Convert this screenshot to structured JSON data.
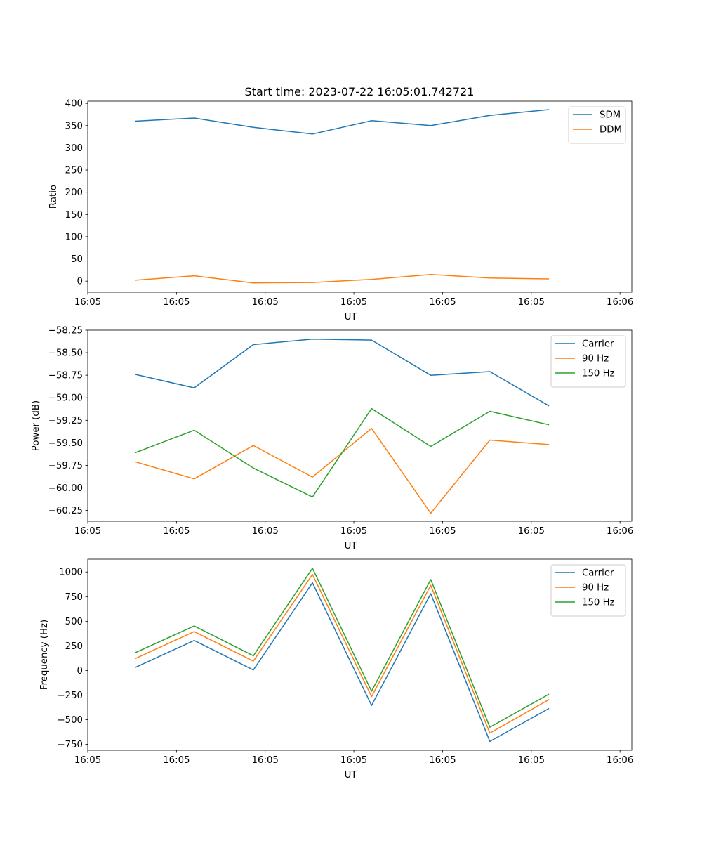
{
  "figure_title": "Start time: 2023-07-22 16:05:01.742721",
  "colors": {
    "blue": "#1f77b4",
    "orange": "#ff7f0e",
    "green": "#2ca02c"
  },
  "chart_data": [
    {
      "type": "line",
      "title": "Start time: 2023-07-22 16:05:01.742721",
      "xlabel": "UT",
      "ylabel": "Ratio",
      "x": [
        1,
        2,
        3,
        4,
        5,
        6,
        7,
        8
      ],
      "xlim": [
        0.2,
        9.4
      ],
      "xticks": [
        0.2,
        1.7,
        3.2,
        4.7,
        6.2,
        7.7,
        9.2
      ],
      "xtick_labels": [
        "16:05",
        "16:05",
        "16:05",
        "16:05",
        "16:05",
        "16:05",
        "16:06"
      ],
      "ylim": [
        -25,
        405
      ],
      "yticks": [
        0,
        50,
        100,
        150,
        200,
        250,
        300,
        350,
        400
      ],
      "ytick_labels": [
        "0",
        "50",
        "100",
        "150",
        "200",
        "250",
        "300",
        "350",
        "400"
      ],
      "legend_loc": "upper right",
      "series": [
        {
          "name": "SDM",
          "color": "#1f77b4",
          "values": [
            360,
            367,
            346,
            331,
            361,
            350,
            373,
            386
          ]
        },
        {
          "name": "DDM",
          "color": "#ff7f0e",
          "values": [
            2,
            12,
            -4,
            -3,
            4,
            15,
            7,
            5
          ]
        }
      ]
    },
    {
      "type": "line",
      "title": "",
      "xlabel": "UT",
      "ylabel": "Power (dB)",
      "x": [
        1,
        2,
        3,
        4,
        5,
        6,
        7,
        8
      ],
      "xlim": [
        0.2,
        9.4
      ],
      "xticks": [
        0.2,
        1.7,
        3.2,
        4.7,
        6.2,
        7.7,
        9.2
      ],
      "xtick_labels": [
        "16:05",
        "16:05",
        "16:05",
        "16:05",
        "16:05",
        "16:05",
        "16:06"
      ],
      "ylim": [
        -60.37,
        -58.25
      ],
      "yticks": [
        -60.25,
        -60.0,
        -59.75,
        -59.5,
        -59.25,
        -59.0,
        -58.75,
        -58.5,
        -58.25
      ],
      "ytick_labels": [
        "−60.25",
        "−60.00",
        "−59.75",
        "−59.50",
        "−59.25",
        "−59.00",
        "−58.75",
        "−58.50",
        "−58.25"
      ],
      "legend_loc": "upper right",
      "series": [
        {
          "name": "Carrier",
          "color": "#1f77b4",
          "values": [
            -58.74,
            -58.89,
            -58.41,
            -58.35,
            -58.36,
            -58.75,
            -58.71,
            -59.09
          ]
        },
        {
          "name": "90 Hz",
          "color": "#ff7f0e",
          "values": [
            -59.71,
            -59.9,
            -59.53,
            -59.88,
            -59.34,
            -60.28,
            -59.47,
            -59.52
          ]
        },
        {
          "name": "150 Hz",
          "color": "#2ca02c",
          "values": [
            -59.61,
            -59.36,
            -59.78,
            -60.1,
            -59.12,
            -59.54,
            -59.15,
            -59.3
          ]
        }
      ]
    },
    {
      "type": "line",
      "title": "",
      "xlabel": "UT",
      "ylabel": "Frequency (Hz)",
      "x": [
        1,
        2,
        3,
        4,
        5,
        6,
        7,
        8
      ],
      "xlim": [
        0.2,
        9.4
      ],
      "xticks": [
        0.2,
        1.7,
        3.2,
        4.7,
        6.2,
        7.7,
        9.2
      ],
      "xtick_labels": [
        "16:05",
        "16:05",
        "16:05",
        "16:05",
        "16:05",
        "16:05",
        "16:06"
      ],
      "ylim": [
        -810,
        1130
      ],
      "yticks": [
        -750,
        -500,
        -250,
        0,
        250,
        500,
        750,
        1000
      ],
      "ytick_labels": [
        "−750",
        "−500",
        "−250",
        "0",
        "250",
        "500",
        "750",
        "1000"
      ],
      "legend_loc": "upper right",
      "series": [
        {
          "name": "Carrier",
          "color": "#1f77b4",
          "values": [
            30,
            305,
            5,
            890,
            -355,
            780,
            -720,
            -385
          ]
        },
        {
          "name": "90 Hz",
          "color": "#ff7f0e",
          "values": [
            120,
            395,
            95,
            975,
            -265,
            865,
            -635,
            -295
          ]
        },
        {
          "name": "150 Hz",
          "color": "#2ca02c",
          "values": [
            180,
            452,
            150,
            1038,
            -210,
            923,
            -575,
            -240
          ]
        }
      ]
    }
  ]
}
